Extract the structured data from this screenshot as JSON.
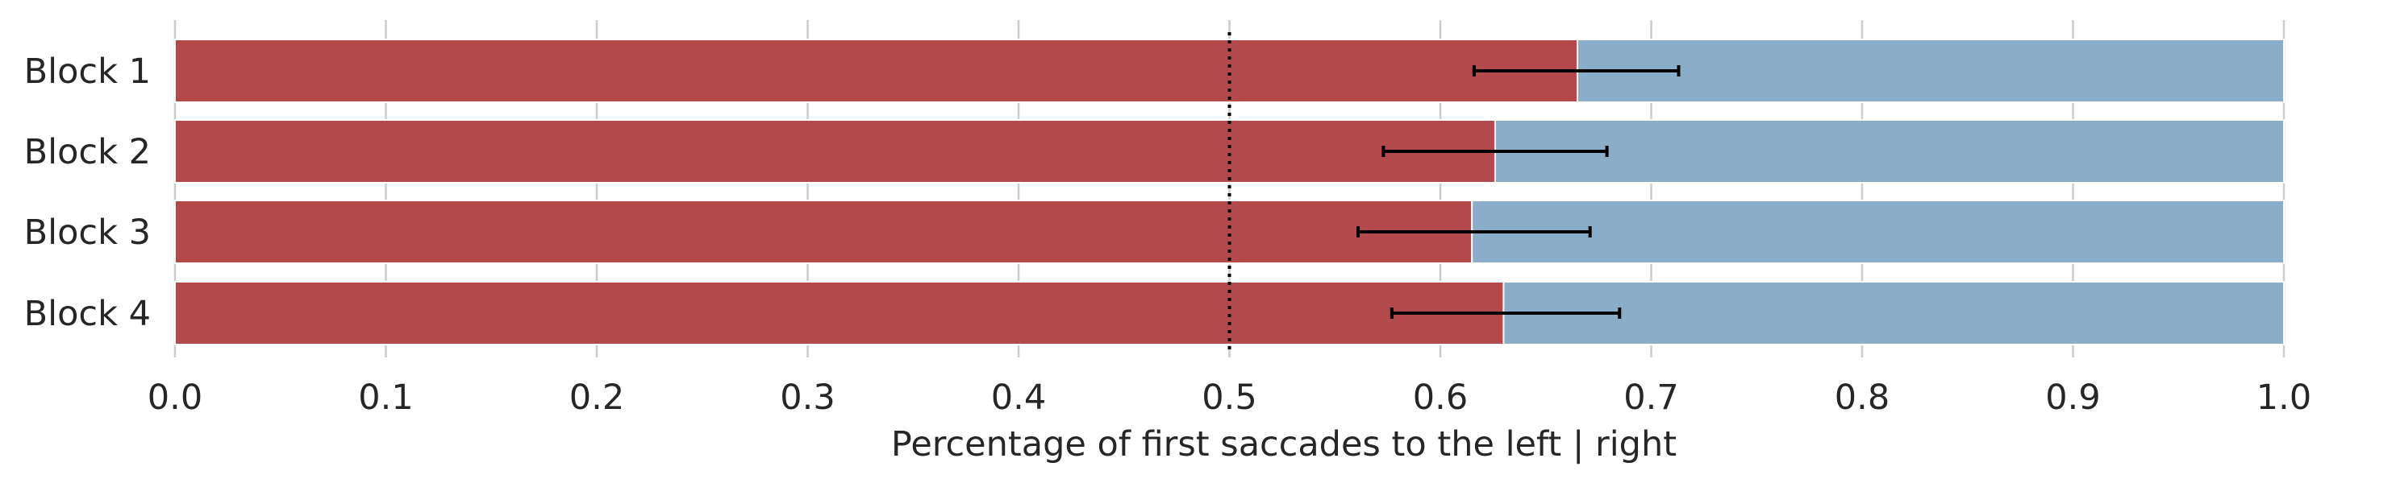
{
  "chart_data": {
    "type": "bar",
    "orientation": "horizontal",
    "stacked": true,
    "categories": [
      "Block 1",
      "Block 2",
      "Block 3",
      "Block 4"
    ],
    "series": [
      {
        "values": [
          0.665,
          0.626,
          0.615,
          0.63
        ],
        "color": "#b24a4c"
      },
      {
        "values": [
          0.335,
          0.374,
          0.385,
          0.37
        ],
        "color": "#8aaec9"
      }
    ],
    "error_bars": [
      {
        "center": 0.665,
        "low": 0.616,
        "high": 0.713
      },
      {
        "center": 0.626,
        "low": 0.573,
        "high": 0.679
      },
      {
        "center": 0.615,
        "low": 0.561,
        "high": 0.671
      },
      {
        "center": 0.63,
        "low": 0.577,
        "high": 0.685
      }
    ],
    "reference_line": {
      "x": 0.5,
      "style": "dotted"
    },
    "xlabel": "Percentage of first saccades to the left | right",
    "ylabel": "",
    "title": "",
    "xlim": [
      0.0,
      1.0
    ],
    "xticks": [
      "0.0",
      "0.1",
      "0.2",
      "0.3",
      "0.4",
      "0.5",
      "0.6",
      "0.7",
      "0.8",
      "0.9",
      "1.0"
    ],
    "grid": "vertical",
    "legend": "none"
  }
}
